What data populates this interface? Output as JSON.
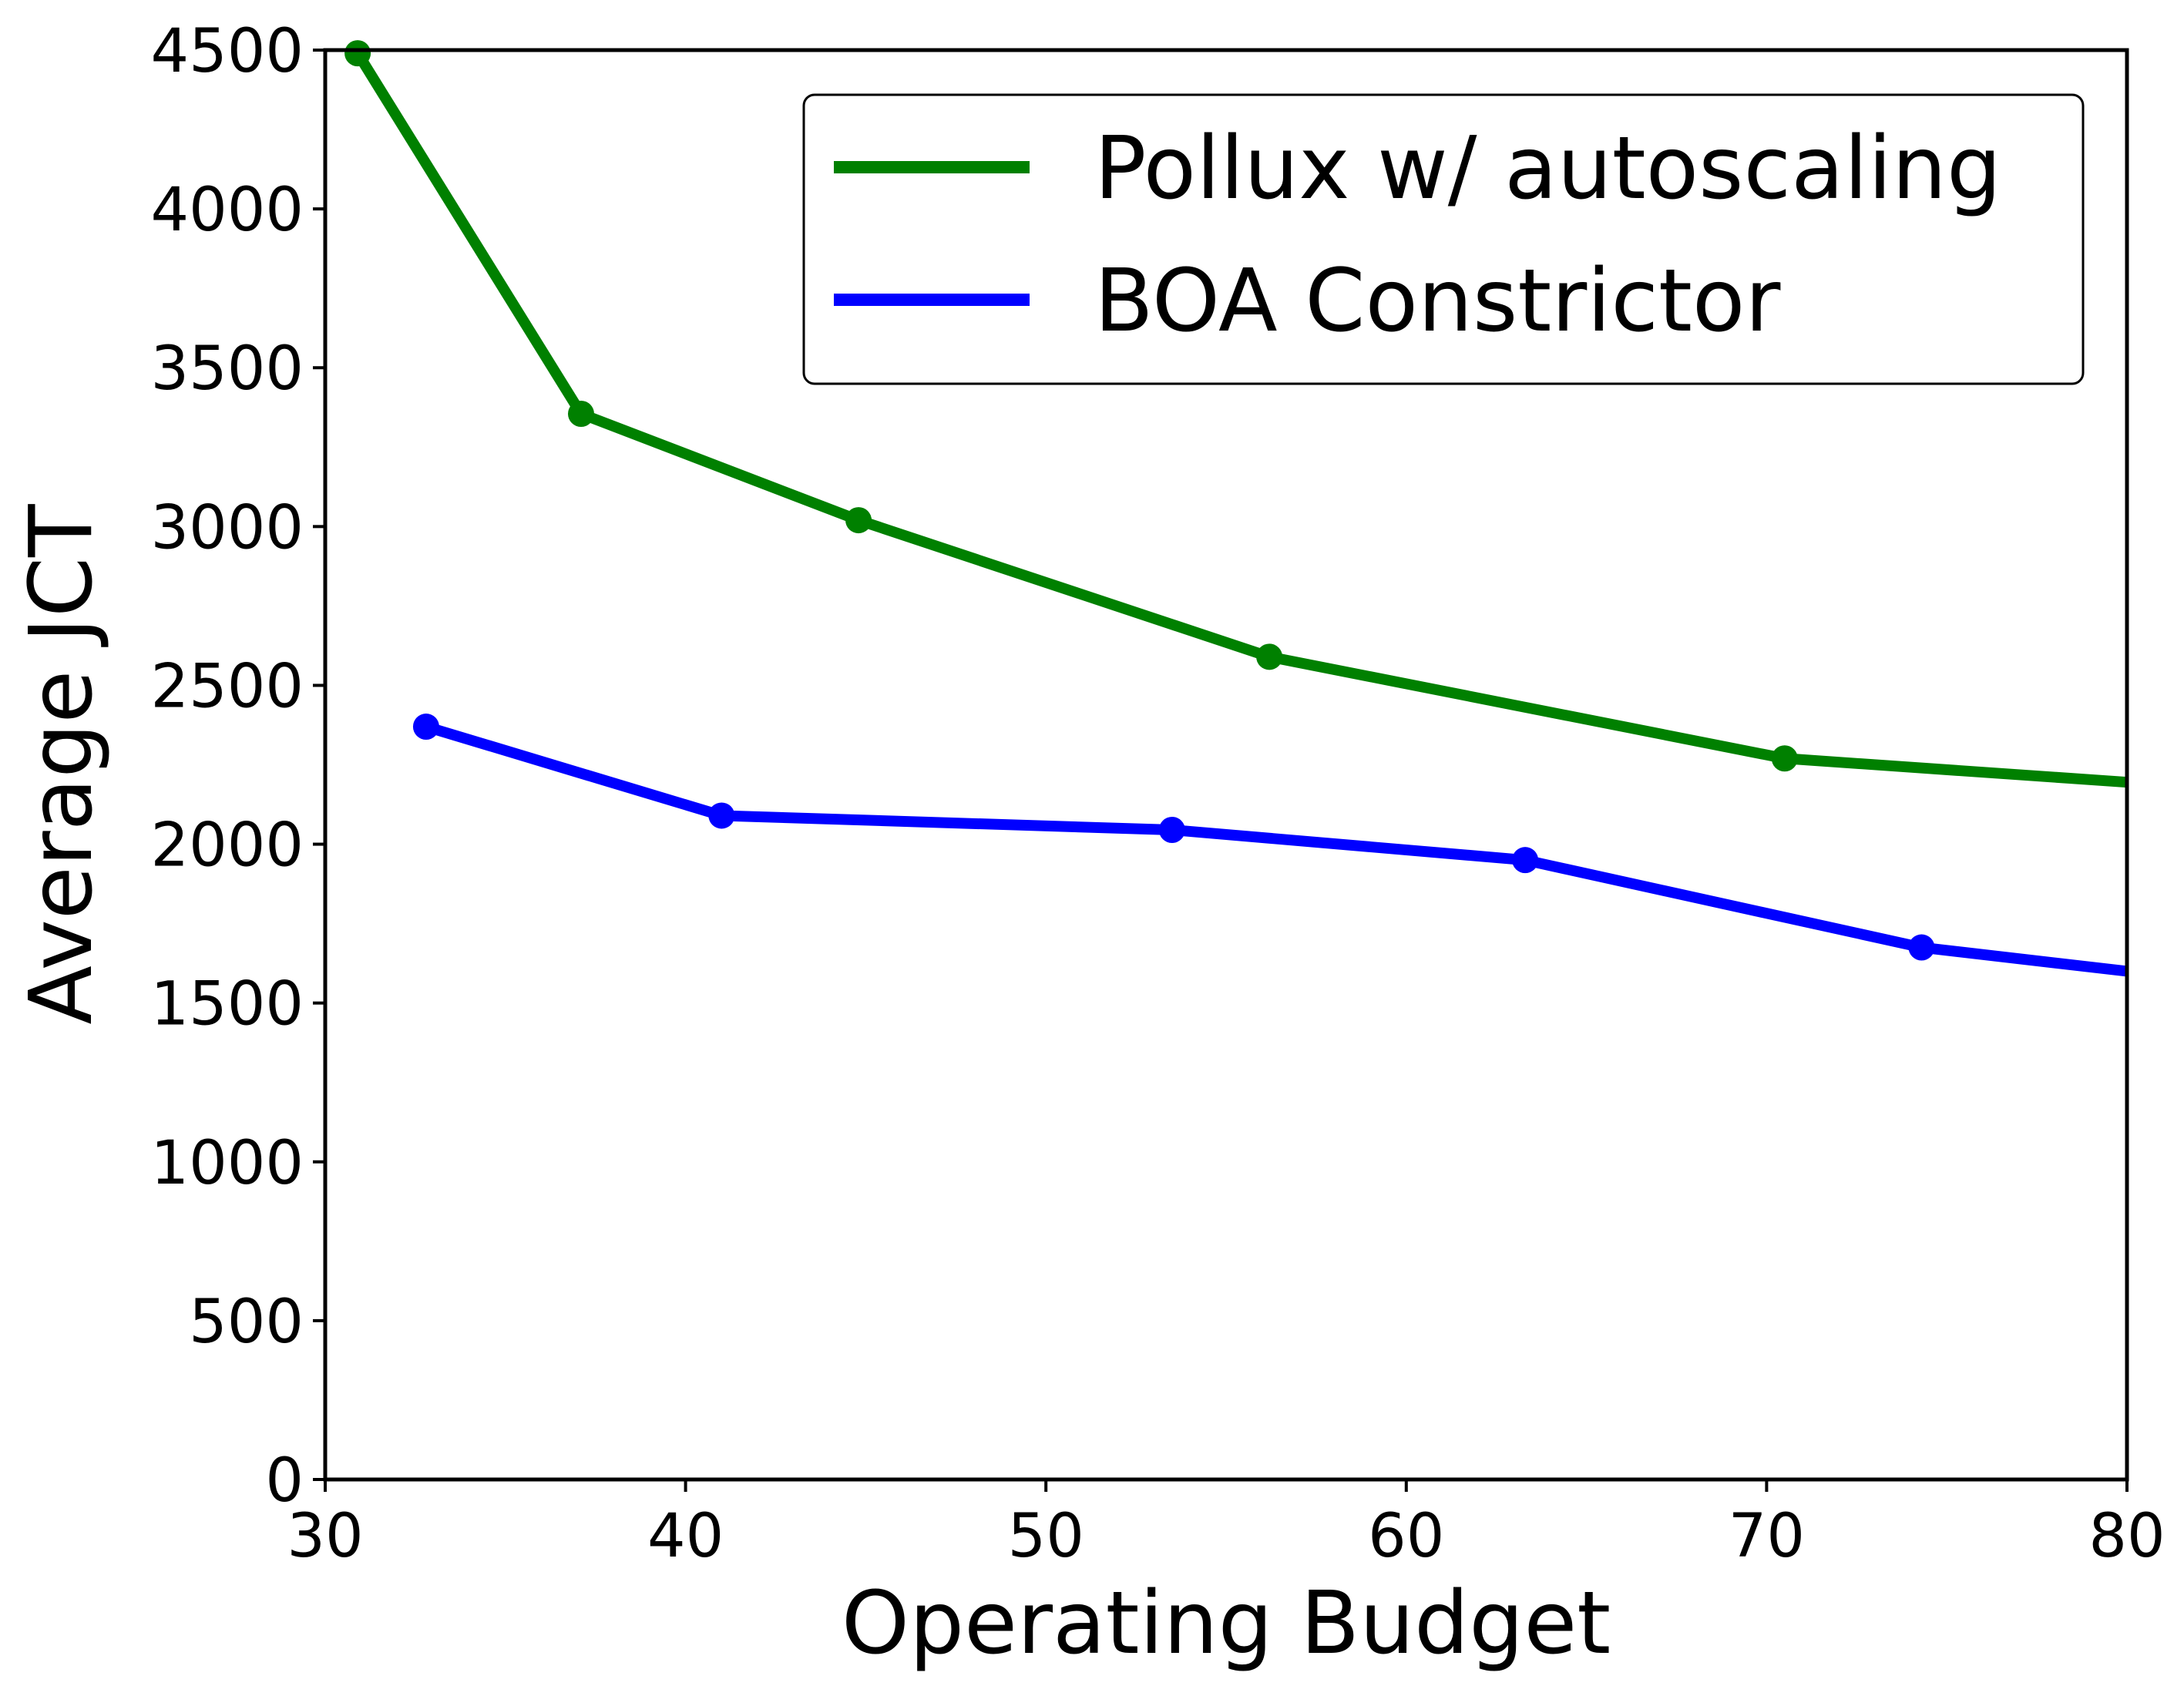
{
  "chart_data": {
    "type": "line",
    "xlabel": "Operating Budget",
    "ylabel": "Average JCT",
    "xlim": [
      30,
      80
    ],
    "ylim": [
      0,
      4500
    ],
    "xticks": [
      "30",
      "40",
      "50",
      "60",
      "70",
      "80"
    ],
    "yticks": [
      "0",
      "500",
      "1000",
      "1500",
      "2000",
      "2500",
      "3000",
      "3500",
      "4000",
      "4500"
    ],
    "grid": false,
    "legend_position": "top-right",
    "series": [
      {
        "name": "Pollux w/ autoscaling",
        "color": "#008000",
        "x": [
          30.9,
          37.1,
          44.8,
          56.2,
          70.5,
          80
        ],
        "y": [
          4490,
          3355,
          3020,
          2590,
          2270,
          2195
        ]
      },
      {
        "name": "BOA Constrictor",
        "color": "#0000ff",
        "x": [
          32.8,
          41.0,
          53.5,
          63.3,
          74.3,
          80
        ],
        "y": [
          2370,
          2090,
          2045,
          1950,
          1675,
          1600
        ]
      }
    ]
  }
}
